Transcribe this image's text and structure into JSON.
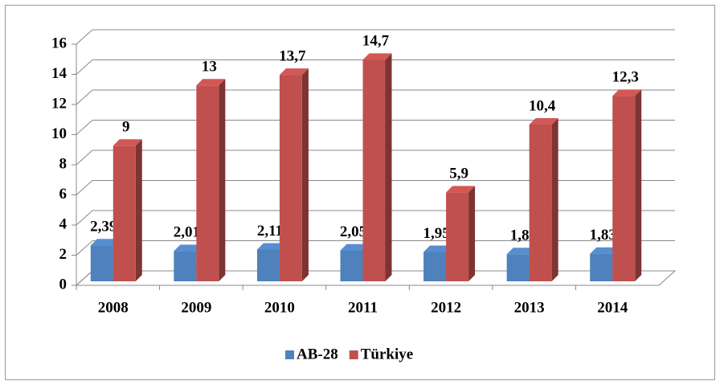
{
  "chart_data": {
    "type": "bar3d",
    "categories": [
      "2008",
      "2009",
      "2010",
      "2011",
      "2012",
      "2013",
      "2014"
    ],
    "series": [
      {
        "name": "AB-28",
        "color": "#4f81bd",
        "values": [
          2.39,
          2.01,
          2.11,
          2.05,
          1.95,
          1.8,
          1.83
        ],
        "value_labels": [
          "2,39",
          "2,01",
          "2,11",
          "2,05",
          "1,95",
          "1,8",
          "1,83"
        ]
      },
      {
        "name": "Türkiye",
        "color": "#c0504d",
        "values": [
          9,
          13,
          13.7,
          14.7,
          5.9,
          10.4,
          12.3
        ],
        "value_labels": [
          "9",
          "13",
          "13,7",
          "14,7",
          "5,9",
          "10,4",
          "12,3"
        ]
      }
    ],
    "ylim": [
      0,
      16
    ],
    "yticks": [
      0,
      2,
      4,
      6,
      8,
      10,
      12,
      14,
      16
    ],
    "grid": true,
    "legend": "bottom"
  }
}
